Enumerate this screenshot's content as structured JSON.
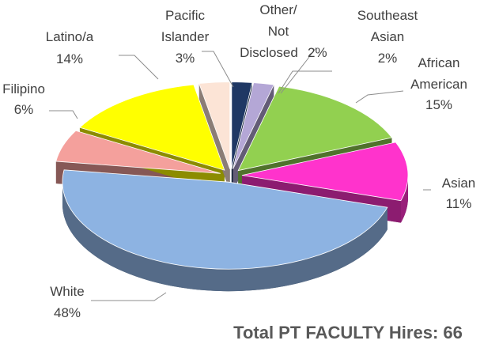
{
  "chart_data": {
    "type": "pie",
    "annotation": "Total PT FACULTY Hires:  66",
    "categories": [
      "Other/ Not Disclosed",
      "Southeast Asian",
      "African American",
      "Asian",
      "White",
      "Filipino",
      "Latino/a",
      "Pacific Islander"
    ],
    "values": [
      2,
      2,
      15,
      11,
      48,
      6,
      14,
      3
    ],
    "value_labels": [
      "2%",
      "2%",
      "15%",
      "11%",
      "48%",
      "6%",
      "14%",
      "3%"
    ],
    "colors": [
      "#1f3864",
      "#b4a7d6",
      "#92d050",
      "#ff33cc",
      "#8db3e2",
      "#f4a09c",
      "#ffff00",
      "#fce4d6"
    ]
  }
}
